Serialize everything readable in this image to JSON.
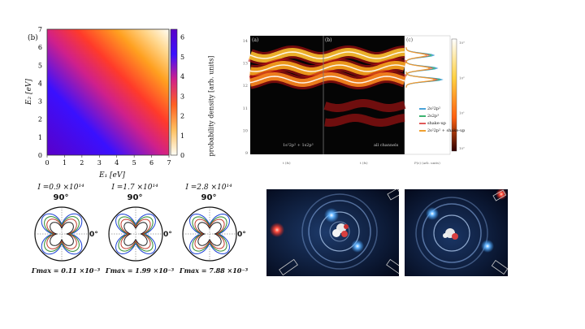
{
  "heatmap": {
    "panel_label": "(b)",
    "xlabel": "E₁ [eV]",
    "ylabel": "E₂ [eV]",
    "cbar_label": "probability density [arb. units]",
    "xticks": [
      "0",
      "1",
      "2",
      "3",
      "4",
      "5",
      "6",
      "7"
    ],
    "yticks": [
      "0",
      "1",
      "2",
      "3",
      "4",
      "5",
      "6",
      "7"
    ],
    "cbar_ticks": [
      "0",
      "1",
      "2",
      "3",
      "4",
      "5",
      "6"
    ]
  },
  "spectrum": {
    "panel_labels": [
      "(a)",
      "(b)",
      "(c)"
    ],
    "inset_labels": [
      "1s²2p² + 1s2p³",
      "all channels"
    ],
    "legend": [
      "2s²2p²",
      "2s2p³",
      "shake-up",
      "2s²2p² + shake-up"
    ],
    "legend_colors": [
      "#4aa3d8",
      "#3cb371",
      "#e05a5a",
      "#f0a030"
    ],
    "yticks": [
      "14",
      "13",
      "12",
      "11",
      "10",
      "9"
    ],
    "xlabel_a": "t (fs)",
    "xlabel_b": "t (fs)",
    "xlabel_c": "P(ε) (arb. units)",
    "cbar_ticks": [
      "10³",
      "10²",
      "10¹",
      "10⁰"
    ]
  },
  "polar": {
    "plots": [
      {
        "intensity": "I =0.9 ×10¹⁴",
        "angle_top": "90°",
        "angle_right": "0°",
        "gamma": "Γmax = 0.11 ×10⁻³"
      },
      {
        "intensity": "I =1.7 ×10¹⁴",
        "angle_top": "90°",
        "angle_right": "0°",
        "gamma": "Γmax = 1.99 ×10⁻³"
      },
      {
        "intensity": "I =2.8 ×10¹⁴",
        "angle_top": "90°",
        "angle_right": "0°",
        "gamma": "Γmax = 7.88 ×10⁻³"
      }
    ],
    "curve_colors": [
      "#1a3fd6",
      "#2e8b2e",
      "#c0392b",
      "#222222"
    ]
  },
  "colors": {
    "render_bg": "#06122a",
    "glow": "#3aa0ff"
  }
}
